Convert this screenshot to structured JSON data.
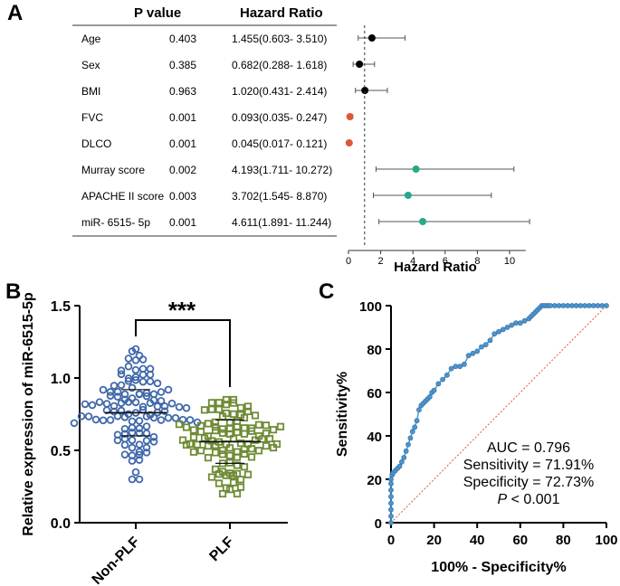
{
  "panel_labels": {
    "a": "A",
    "b": "B",
    "c": "C"
  },
  "colors": {
    "black": "#000000",
    "red": "#e0553c",
    "teal": "#26a98a",
    "blue": "#3f67aa",
    "green": "#6f8b35",
    "roc": "#5b9fd0",
    "ref": "#e0553c"
  },
  "chart_data": [
    {
      "type": "forest",
      "headers": {
        "pvalue": "P value",
        "hr": "Hazard Ratio"
      },
      "rows": [
        {
          "label": "Age",
          "p": "0.403",
          "hr_text": "1.455(0.603- 3.510)",
          "hr": 1.455,
          "lo": 0.603,
          "hi": 3.51,
          "color": "black"
        },
        {
          "label": "Sex",
          "p": "0.385",
          "hr_text": "0.682(0.288- 1.618)",
          "hr": 0.682,
          "lo": 0.288,
          "hi": 1.618,
          "color": "black"
        },
        {
          "label": "BMI",
          "p": "0.963",
          "hr_text": "1.020(0.431- 2.414)",
          "hr": 1.02,
          "lo": 0.431,
          "hi": 2.414,
          "color": "black"
        },
        {
          "label": "FVC",
          "p": "0.001",
          "hr_text": "0.093(0.035- 0.247)",
          "hr": 0.093,
          "lo": 0.035,
          "hi": 0.247,
          "color": "red"
        },
        {
          "label": "DLCO",
          "p": "0.001",
          "hr_text": "0.045(0.017- 0.121)",
          "hr": 0.045,
          "lo": 0.017,
          "hi": 0.121,
          "color": "red"
        },
        {
          "label": "Murray score",
          "p": "0.002",
          "hr_text": "4.193(1.711- 10.272)",
          "hr": 4.193,
          "lo": 1.711,
          "hi": 10.272,
          "color": "teal"
        },
        {
          "label": "APACHE II score",
          "p": "0.003",
          "hr_text": "3.702(1.545- 8.870)",
          "hr": 3.702,
          "lo": 1.545,
          "hi": 8.87,
          "color": "teal"
        },
        {
          "label": "miR- 6515- 5p",
          "p": "0.001",
          "hr_text": "4.611(1.891- 11.244)",
          "hr": 4.611,
          "lo": 1.891,
          "hi": 11.244,
          "color": "teal"
        }
      ],
      "xlabel": "Hazard Ratio",
      "xlim": [
        0,
        11
      ],
      "xticks": [
        0,
        2,
        4,
        6,
        8,
        10
      ],
      "xtick_labels": [
        "0",
        "2",
        "4",
        "6",
        "8",
        "10"
      ],
      "reference_line": 1
    },
    {
      "type": "scatter",
      "categories": [
        "Non-PLF",
        "PLF"
      ],
      "ylabel": "Relative expression of miR-6515-5p",
      "ylim": [
        0,
        1.5
      ],
      "yticks": [
        0,
        0.5,
        1.0,
        1.5
      ],
      "ytick_labels": [
        "0.0",
        "0.5",
        "1.0",
        "1.5"
      ],
      "significance": "***",
      "groups": [
        {
          "name": "Non-PLF",
          "n": 110,
          "mean": 0.76,
          "sd": 0.16,
          "min": 0.3,
          "max": 1.2,
          "color": "blue",
          "marker": "circle"
        },
        {
          "name": "PLF",
          "n": 100,
          "mean": 0.56,
          "sd": 0.15,
          "min": 0.2,
          "max": 0.85,
          "color": "green",
          "marker": "square"
        }
      ]
    },
    {
      "type": "line",
      "xlabel": "100% - Specificity%",
      "ylabel": "Sensitivity%",
      "xlim": [
        0,
        100
      ],
      "ylim": [
        0,
        100
      ],
      "ticks": [
        0,
        20,
        40,
        60,
        80,
        100
      ],
      "tick_labels": [
        "0",
        "20",
        "40",
        "60",
        "80",
        "100"
      ],
      "roc": {
        "x": [
          0,
          0,
          0,
          0,
          0,
          0,
          0,
          0,
          0.5,
          1,
          2,
          3,
          4,
          5,
          6,
          7,
          8,
          9,
          10,
          11,
          12,
          13,
          14,
          15,
          16,
          17,
          18,
          19,
          20,
          22,
          24,
          26,
          28,
          30,
          32,
          34,
          36,
          38,
          40,
          42,
          44,
          46,
          48,
          50,
          52,
          54,
          56,
          58,
          60,
          62,
          64,
          65,
          66,
          67,
          68,
          69,
          70,
          71,
          72,
          73,
          74,
          76,
          78,
          80,
          82,
          84,
          86,
          88,
          90,
          92,
          94,
          96,
          98,
          100
        ],
        "y": [
          0,
          3,
          6,
          9,
          12,
          15,
          18,
          20,
          22,
          23,
          24,
          25,
          26,
          28,
          30,
          33,
          36,
          39,
          42,
          44,
          47,
          52,
          54,
          55,
          56,
          57,
          58,
          60,
          61,
          64,
          66,
          68,
          71,
          72,
          72,
          73,
          77,
          78,
          79,
          81,
          82,
          84,
          87,
          88,
          89,
          90,
          91,
          92,
          92,
          93,
          94,
          95,
          96,
          97,
          98,
          99,
          100,
          100,
          100,
          100,
          100,
          100,
          100,
          100,
          100,
          100,
          100,
          100,
          100,
          100,
          100,
          100,
          100,
          100
        ]
      },
      "annotations": [
        "AUC = 0.796",
        "Sensitivity = 71.91%",
        "Specificity = 72.73%"
      ],
      "p_symbol": "P",
      "p_rest": " < 0.001"
    }
  ]
}
